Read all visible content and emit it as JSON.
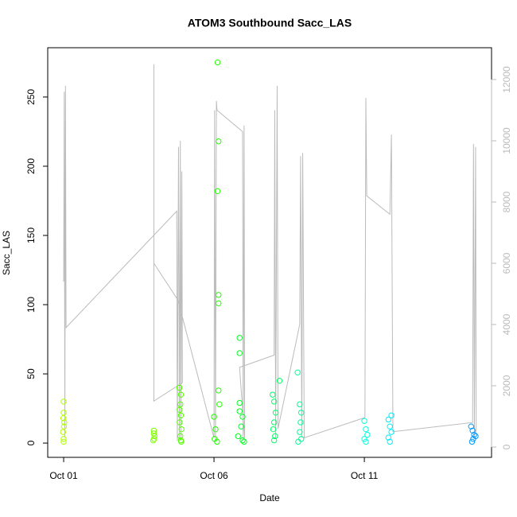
{
  "chart_data": {
    "type": "scatter",
    "title": "ATOM3 Southbound Sacc_LAS",
    "x_label": "Date",
    "y_label": "Sacc_LAS",
    "xlim": [
      0.47,
      15.23
    ],
    "xticks": [
      {
        "value": 1,
        "label": "Oct 01"
      },
      {
        "value": 6,
        "label": "Oct 06"
      },
      {
        "value": 11,
        "label": "Oct 11"
      }
    ],
    "ylim": [
      -10.3,
      285.6
    ],
    "yticks": [
      0,
      50,
      100,
      150,
      200,
      250
    ],
    "y2lim": [
      -338,
      13039
    ],
    "y2ticks": [
      0,
      2000,
      4000,
      6000,
      8000,
      10000,
      12000
    ],
    "series": [
      {
        "color": "#b0ff00",
        "x": [
          1.0,
          1.0,
          1.02,
          0.98,
          1.0,
          1.01,
          0.99,
          1.0
        ],
        "values": [
          30,
          22,
          15,
          8,
          3,
          12,
          18,
          1
        ]
      },
      {
        "color": "#80ff00",
        "x": [
          4.0,
          4.02,
          3.98,
          4.0,
          4.01
        ],
        "values": [
          9,
          5,
          2,
          7,
          3
        ]
      },
      {
        "color": "#55ff00",
        "x": [
          4.85,
          4.9,
          4.88,
          4.9,
          4.86,
          4.92,
          4.88,
          4.9,
          4.86,
          4.91
        ],
        "values": [
          40,
          35,
          28,
          20,
          15,
          10,
          5,
          2,
          24,
          1
        ]
      },
      {
        "color": "#22ff00",
        "x": [
          6.12,
          6.15,
          6.12,
          6.15,
          6.15,
          6.15,
          6.18,
          6.0,
          6.05,
          6.02,
          6.1
        ],
        "values": [
          275,
          218,
          182,
          107,
          101,
          38,
          28,
          19,
          10,
          3,
          1
        ]
      },
      {
        "color": "#00ff22",
        "x": [
          6.85,
          6.85,
          6.85,
          6.85,
          6.95,
          6.9,
          6.8,
          6.95,
          7.0
        ],
        "values": [
          76,
          65,
          29,
          23,
          19,
          12,
          5,
          2,
          1
        ]
      },
      {
        "color": "#00ff66",
        "x": [
          7.95,
          8.0,
          8.05,
          8.0,
          7.97,
          8.03,
          8.0,
          8.18
        ],
        "values": [
          35,
          30,
          22,
          15,
          10,
          5,
          2,
          45
        ]
      },
      {
        "color": "#00ff99",
        "x": [
          8.78,
          8.85,
          8.9,
          8.88,
          8.85,
          8.9,
          8.8
        ],
        "values": [
          51,
          28,
          22,
          15,
          8,
          3,
          1
        ]
      },
      {
        "color": "#00ffdd",
        "x": [
          11.0,
          11.05,
          11.1,
          11.0,
          11.05
        ],
        "values": [
          16,
          10,
          6,
          3,
          1
        ]
      },
      {
        "color": "#00eeff",
        "x": [
          11.9,
          11.8,
          11.85,
          11.9,
          11.8,
          11.85
        ],
        "values": [
          20,
          17,
          12,
          8,
          4,
          1
        ]
      },
      {
        "color": "#0099ff",
        "x": [
          14.55,
          14.6,
          14.65,
          14.62,
          14.58,
          14.7
        ],
        "values": [
          12,
          9,
          6,
          3,
          1,
          5
        ]
      },
      {
        "type": "line",
        "axis": "y2",
        "color": "#bbbbbb",
        "x": [
          1.0,
          1.02,
          1.04,
          1.06,
          1.08,
          4.76,
          4.78,
          4.82,
          4.85,
          4.88,
          4.9,
          4.93,
          4.95,
          4.0,
          4.0,
          4.0,
          4.8,
          6.0,
          6.02,
          6.05,
          6.08,
          6.1,
          6.95,
          6.97,
          7.0,
          7.02,
          6.85,
          8.0,
          8.02,
          8.05,
          8.1,
          8.13,
          8.85,
          8.88,
          8.92,
          8.95,
          9.0,
          11.02,
          11.05,
          11.08,
          11.85,
          11.9,
          11.95,
          14.6,
          14.63,
          14.66,
          14.7,
          14.72
        ],
        "values": [
          5400,
          11600,
          300,
          11800,
          3900,
          7700,
          200,
          9800,
          300,
          10000,
          200,
          9000,
          2100,
          1500,
          12500,
          6000,
          4800,
          300,
          11000,
          200,
          11300,
          11000,
          10300,
          200,
          10500,
          300,
          2600,
          3000,
          11000,
          300,
          11800,
          600,
          4000,
          9500,
          300,
          9600,
          300,
          960,
          11400,
          8200,
          7600,
          10200,
          500,
          800,
          9900,
          300,
          9800,
          500
        ]
      }
    ]
  }
}
